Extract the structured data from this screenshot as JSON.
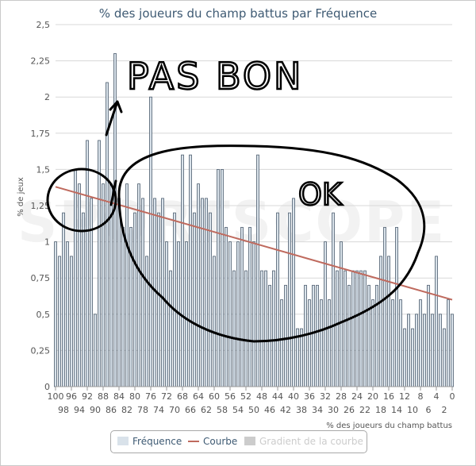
{
  "chart_data": {
    "type": "bar",
    "title": "% des joueurs du champ battus par Fréquence",
    "xlabel": "% des joueurs du champ battus",
    "ylabel": "% de jeux",
    "ylim": [
      0,
      2.5
    ],
    "yticks": [
      "0",
      "0,25",
      "0,5",
      "0,75",
      "1",
      "1,25",
      "1,5",
      "1,75",
      "2",
      "2,25",
      "2,5"
    ],
    "xticks_top": [
      "100",
      "96",
      "92",
      "88",
      "84",
      "80",
      "76",
      "72",
      "68",
      "64",
      "60",
      "56",
      "52",
      "48",
      "44",
      "40",
      "36",
      "32",
      "28",
      "24",
      "20",
      "16",
      "12",
      "8",
      "4",
      "0"
    ],
    "xticks_bottom": [
      "98",
      "94",
      "90",
      "86",
      "82",
      "78",
      "74",
      "70",
      "66",
      "62",
      "58",
      "54",
      "50",
      "46",
      "42",
      "38",
      "34",
      "30",
      "26",
      "22",
      "18",
      "14",
      "10",
      "6",
      "2"
    ],
    "x": [
      100,
      99,
      98,
      97,
      96,
      95,
      94,
      93,
      92,
      91,
      90,
      89,
      88,
      87,
      86,
      85,
      84,
      83,
      82,
      81,
      80,
      79,
      78,
      77,
      76,
      75,
      74,
      73,
      72,
      71,
      70,
      69,
      68,
      67,
      66,
      65,
      64,
      63,
      62,
      61,
      60,
      59,
      58,
      57,
      56,
      55,
      54,
      53,
      52,
      51,
      50,
      49,
      48,
      47,
      46,
      45,
      44,
      43,
      42,
      41,
      40,
      39,
      38,
      37,
      36,
      35,
      34,
      33,
      32,
      31,
      30,
      29,
      28,
      27,
      26,
      25,
      24,
      23,
      22,
      21,
      20,
      19,
      18,
      17,
      16,
      15,
      14,
      13,
      12,
      11,
      10,
      9,
      8,
      7,
      6,
      5,
      4,
      3,
      2,
      1,
      0
    ],
    "series": [
      {
        "name": "Fréquence",
        "type": "bar",
        "values": [
          1.0,
          0.9,
          1.2,
          1.0,
          0.9,
          1.5,
          1.4,
          1.2,
          1.7,
          1.3,
          0.5,
          1.7,
          1.4,
          2.1,
          1.4,
          2.3,
          1.3,
          1.1,
          1.4,
          1.1,
          1.2,
          1.4,
          1.3,
          0.9,
          2.0,
          1.3,
          1.2,
          1.3,
          1.0,
          0.8,
          1.2,
          1.0,
          1.6,
          1.0,
          1.6,
          1.2,
          1.4,
          1.3,
          1.3,
          1.2,
          0.9,
          1.5,
          1.5,
          1.1,
          1.0,
          0.8,
          1.0,
          1.1,
          0.8,
          1.1,
          1.0,
          1.6,
          0.8,
          0.8,
          0.7,
          0.8,
          1.2,
          0.6,
          0.7,
          1.2,
          1.3,
          0.4,
          0.4,
          0.7,
          0.6,
          0.7,
          0.7,
          0.6,
          1.0,
          0.6,
          1.2,
          0.8,
          1.0,
          0.8,
          0.7,
          0.8,
          0.8,
          0.8,
          0.8,
          0.7,
          0.6,
          0.7,
          0.9,
          1.1,
          0.9,
          0.6,
          1.1,
          0.6,
          0.4,
          0.5,
          0.4,
          0.5,
          0.6,
          0.5,
          0.7,
          0.5,
          0.9,
          0.5,
          0.4,
          0.6,
          0.5
        ]
      },
      {
        "name": "Courbe",
        "type": "line",
        "x": [
          100,
          0
        ],
        "values": [
          1.38,
          0.6
        ]
      },
      {
        "name": "Gradient de la courbe",
        "type": "line",
        "hidden": true
      }
    ],
    "legend_position": "bottom-center",
    "grid": true
  },
  "legend": {
    "items": [
      {
        "label": "Fréquence"
      },
      {
        "label": "Courbe"
      },
      {
        "label": "Gradient de la courbe"
      }
    ]
  },
  "annotations": {
    "pas_bon": "PAS BON",
    "ok": "OK"
  },
  "watermark": "SPORTSCOPE",
  "colors": {
    "bar_fill": "#d9e2ea",
    "bar_stroke": "#4c5d6e",
    "trend_line": "#bf6a5e",
    "grid": "#d8d8d8",
    "axis_text": "#555555",
    "title": "#3e5a73",
    "ink": "#000000",
    "legend_hidden": "#cccccc"
  }
}
